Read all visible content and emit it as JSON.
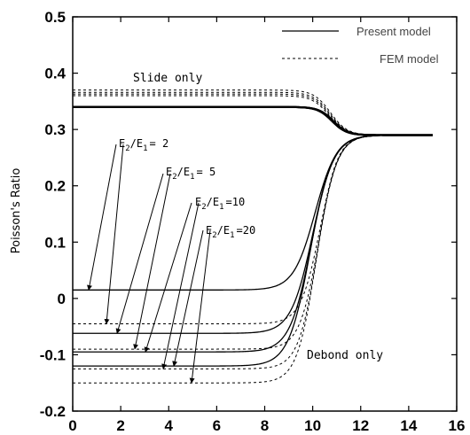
{
  "chart_data": {
    "type": "line",
    "title": "",
    "xlabel": "",
    "ylabel": "Poisson's Ratio",
    "xlim": [
      0,
      16
    ],
    "ylim": [
      -0.2,
      0.5
    ],
    "x_ticks": [
      "0",
      "2",
      "4",
      "6",
      "8",
      "10",
      "12",
      "14",
      "16"
    ],
    "y_ticks": [
      "-0.2",
      "-0.1",
      "0",
      "0.1",
      "0.2",
      "0.3",
      "0.4",
      "0.5"
    ],
    "grid": false,
    "legend_position": "top-right",
    "legend": [
      {
        "label": "Present model",
        "style": "solid"
      },
      {
        "label": "FEM model",
        "style": "dashed"
      }
    ],
    "annotations": {
      "slide": "Slide only",
      "debond": "Debond only"
    },
    "ratio_labels": [
      {
        "sub1": "2",
        "sub2": "1",
        "value": "= 2",
        "target": "present",
        "fem_target": 1
      },
      {
        "sub1": "2",
        "sub2": "1",
        "value": "= 5",
        "target": "present",
        "fem_target": 2
      },
      {
        "sub1": "2",
        "sub2": "1",
        "value": "=10",
        "target": "present",
        "fem_target": 3
      },
      {
        "sub1": "2",
        "sub2": "1",
        "value": "=20",
        "target": "present",
        "fem_target": 4
      }
    ],
    "series": [
      {
        "ratio": "2",
        "style": "solid",
        "low": 0.015,
        "high": 0.34,
        "x50": 10.1,
        "width": 0.45
      },
      {
        "ratio": "5",
        "style": "solid",
        "low": -0.062,
        "high": 0.34,
        "x50": 10.0,
        "width": 0.45
      },
      {
        "ratio": "10",
        "style": "solid",
        "low": -0.095,
        "high": 0.34,
        "x50": 9.95,
        "width": 0.45
      },
      {
        "ratio": "20",
        "style": "solid",
        "low": -0.12,
        "high": 0.34,
        "x50": 9.9,
        "width": 0.45
      },
      {
        "ratio": "2",
        "style": "dashed",
        "low": -0.045,
        "high": 0.36,
        "x50": 10.3,
        "width": 0.4
      },
      {
        "ratio": "5",
        "style": "dashed",
        "low": -0.09,
        "high": 0.363,
        "x50": 10.25,
        "width": 0.4
      },
      {
        "ratio": "10",
        "style": "dashed",
        "low": -0.125,
        "high": 0.366,
        "x50": 10.2,
        "width": 0.4
      },
      {
        "ratio": "20",
        "style": "dashed",
        "low": -0.15,
        "high": 0.37,
        "x50": 10.15,
        "width": 0.4
      }
    ],
    "plateau_final": 0.29
  }
}
